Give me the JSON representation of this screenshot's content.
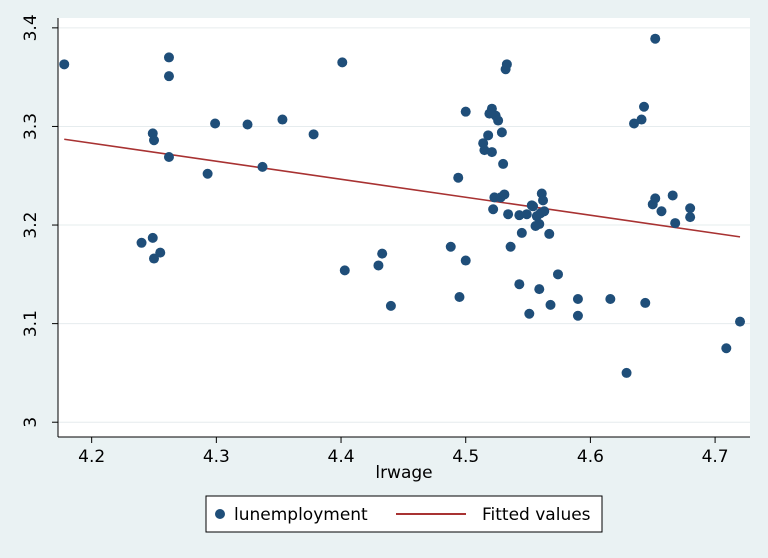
{
  "chart_data": {
    "type": "scatter",
    "xlabel": "lrwage",
    "ylabel": "",
    "xlim": [
      4.173,
      4.728
    ],
    "ylim": [
      2.985,
      3.41
    ],
    "xticks": [
      4.2,
      4.3,
      4.4,
      4.5,
      4.6,
      4.7
    ],
    "xtick_labels": [
      "4.2",
      "4.3",
      "4.4",
      "4.5",
      "4.6",
      "4.7"
    ],
    "yticks": [
      3,
      3.1,
      3.2,
      3.3,
      3.4
    ],
    "ytick_labels": [
      "3",
      "3.1",
      "3.2",
      "3.3",
      "3.4"
    ],
    "grid": "horizontal",
    "legend_position": "bottom",
    "colors": {
      "points": "#1f4e79",
      "fit": "#a83232",
      "background": "#eaf2f3",
      "plot": "#ffffff"
    },
    "series": [
      {
        "name": "lunemployment",
        "kind": "scatter",
        "points": [
          [
            4.178,
            3.363
          ],
          [
            4.262,
            3.37
          ],
          [
            4.262,
            3.351
          ],
          [
            4.249,
            3.293
          ],
          [
            4.25,
            3.286
          ],
          [
            4.262,
            3.269
          ],
          [
            4.24,
            3.182
          ],
          [
            4.249,
            3.187
          ],
          [
            4.25,
            3.166
          ],
          [
            4.255,
            3.172
          ],
          [
            4.293,
            3.252
          ],
          [
            4.299,
            3.303
          ],
          [
            4.325,
            3.302
          ],
          [
            4.337,
            3.259
          ],
          [
            4.353,
            3.307
          ],
          [
            4.378,
            3.292
          ],
          [
            4.401,
            3.365
          ],
          [
            4.403,
            3.154
          ],
          [
            4.43,
            3.159
          ],
          [
            4.433,
            3.171
          ],
          [
            4.44,
            3.118
          ],
          [
            4.488,
            3.178
          ],
          [
            4.494,
            3.248
          ],
          [
            4.495,
            3.127
          ],
          [
            4.5,
            3.315
          ],
          [
            4.5,
            3.164
          ],
          [
            4.514,
            3.283
          ],
          [
            4.515,
            3.276
          ],
          [
            4.518,
            3.291
          ],
          [
            4.519,
            3.313
          ],
          [
            4.521,
            3.318
          ],
          [
            4.521,
            3.274
          ],
          [
            4.522,
            3.216
          ],
          [
            4.523,
            3.228
          ],
          [
            4.524,
            3.311
          ],
          [
            4.526,
            3.306
          ],
          [
            4.528,
            3.228
          ],
          [
            4.529,
            3.294
          ],
          [
            4.53,
            3.262
          ],
          [
            4.531,
            3.231
          ],
          [
            4.532,
            3.358
          ],
          [
            4.533,
            3.363
          ],
          [
            4.534,
            3.211
          ],
          [
            4.536,
            3.178
          ],
          [
            4.543,
            3.21
          ],
          [
            4.543,
            3.14
          ],
          [
            4.545,
            3.192
          ],
          [
            4.549,
            3.211
          ],
          [
            4.551,
            3.11
          ],
          [
            4.553,
            3.22
          ],
          [
            4.554,
            3.219
          ],
          [
            4.556,
            3.199
          ],
          [
            4.557,
            3.209
          ],
          [
            4.559,
            3.201
          ],
          [
            4.559,
            3.135
          ],
          [
            4.56,
            3.212
          ],
          [
            4.561,
            3.232
          ],
          [
            4.562,
            3.225
          ],
          [
            4.563,
            3.214
          ],
          [
            4.567,
            3.191
          ],
          [
            4.568,
            3.119
          ],
          [
            4.574,
            3.15
          ],
          [
            4.59,
            3.125
          ],
          [
            4.59,
            3.108
          ],
          [
            4.616,
            3.125
          ],
          [
            4.629,
            3.05
          ],
          [
            4.635,
            3.303
          ],
          [
            4.641,
            3.307
          ],
          [
            4.643,
            3.32
          ],
          [
            4.644,
            3.121
          ],
          [
            4.65,
            3.221
          ],
          [
            4.652,
            3.227
          ],
          [
            4.652,
            3.389
          ],
          [
            4.657,
            3.214
          ],
          [
            4.666,
            3.23
          ],
          [
            4.668,
            3.202
          ],
          [
            4.68,
            3.208
          ],
          [
            4.68,
            3.217
          ],
          [
            4.709,
            3.075
          ],
          [
            4.72,
            3.102
          ]
        ]
      },
      {
        "name": "Fitted values",
        "kind": "line",
        "points": [
          [
            4.178,
            3.287
          ],
          [
            4.72,
            3.188
          ]
        ]
      }
    ]
  },
  "legend": {
    "items": [
      {
        "label": "lunemployment",
        "icon": "filled-circle-marker"
      },
      {
        "label": "Fitted values",
        "icon": "line-marker"
      }
    ]
  }
}
